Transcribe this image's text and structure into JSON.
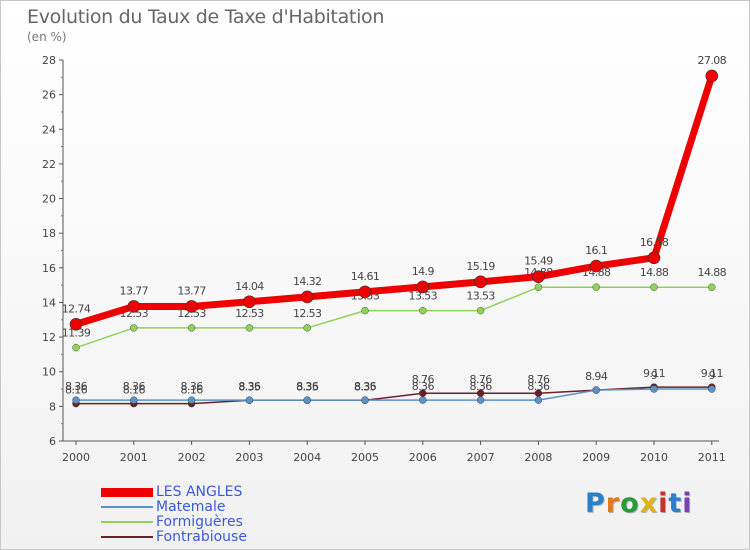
{
  "title": "Evolution du Taux de Taxe d'Habitation",
  "unit_label": "(en %)",
  "brand": [
    "P",
    "r",
    "o",
    "x",
    "i",
    "t",
    "i"
  ],
  "chart_data": {
    "type": "line",
    "x": [
      "2000",
      "2001",
      "2002",
      "2003",
      "2004",
      "2005",
      "2006",
      "2007",
      "2008",
      "2009",
      "2010",
      "2011"
    ],
    "ylim": [
      6,
      28
    ],
    "yticks": [
      6,
      8,
      10,
      12,
      14,
      16,
      18,
      20,
      22,
      24,
      26,
      28
    ],
    "grid": false,
    "legend_position": "bottom-left",
    "series": [
      {
        "name": "Fontrabiouse",
        "color": "#6b1f2a",
        "values": [
          8.16,
          8.16,
          8.16,
          8.35,
          8.35,
          8.35,
          8.76,
          8.76,
          8.76,
          8.94,
          9.11,
          9.11
        ],
        "labels": [
          "8.16",
          "8.16",
          "8.16",
          "8.35",
          "8.35",
          "8.35",
          "8.76",
          "8.76",
          "8.76",
          "8.94",
          "9.11",
          "9.11"
        ]
      },
      {
        "name": "Matemale",
        "color": "#5a93c8",
        "values": [
          8.36,
          8.36,
          8.36,
          8.36,
          8.36,
          8.36,
          8.36,
          8.36,
          8.36,
          8.94,
          9.0,
          9.0
        ],
        "labels": [
          "8.36",
          "8.36",
          "8.36",
          "8.36",
          "8.36",
          "8.36",
          "8.36",
          "8.36",
          "8.36",
          "",
          "9",
          "9"
        ]
      },
      {
        "name": "Formiguères",
        "color": "#8fd15a",
        "values": [
          11.39,
          12.53,
          12.53,
          12.53,
          12.53,
          13.53,
          13.53,
          13.53,
          14.88,
          14.88,
          14.88,
          14.88
        ],
        "labels": [
          "11.39",
          "12.53",
          "12.53",
          "12.53",
          "12.53",
          "13.53",
          "13.53",
          "13.53",
          "14.88",
          "14.88",
          "14.88",
          "14.88"
        ]
      },
      {
        "name": "LES ANGLES",
        "color": "#ee0000",
        "values": [
          12.74,
          13.77,
          13.77,
          14.04,
          14.32,
          14.61,
          14.9,
          15.19,
          15.49,
          16.1,
          16.58,
          27.08
        ],
        "labels": [
          "12.74",
          "13.77",
          "13.77",
          "14.04",
          "14.32",
          "14.61",
          "14.9",
          "15.19",
          "15.49",
          "16.1",
          "16.58",
          "27.08"
        ]
      }
    ]
  },
  "legend": [
    {
      "name": "LES ANGLES",
      "color": "#ee0000",
      "width": 9
    },
    {
      "name": "Matemale",
      "color": "#5a93c8",
      "width": 2
    },
    {
      "name": "Formiguères",
      "color": "#8fd15a",
      "width": 2
    },
    {
      "name": "Fontrabiouse",
      "color": "#6b1f2a",
      "width": 2
    }
  ],
  "brand_colors": [
    "#2a7fc9",
    "#e07a1a",
    "#2a9a3c",
    "#e0b21a",
    "#c9302a",
    "#2a7fc9",
    "#7a3fb0"
  ]
}
